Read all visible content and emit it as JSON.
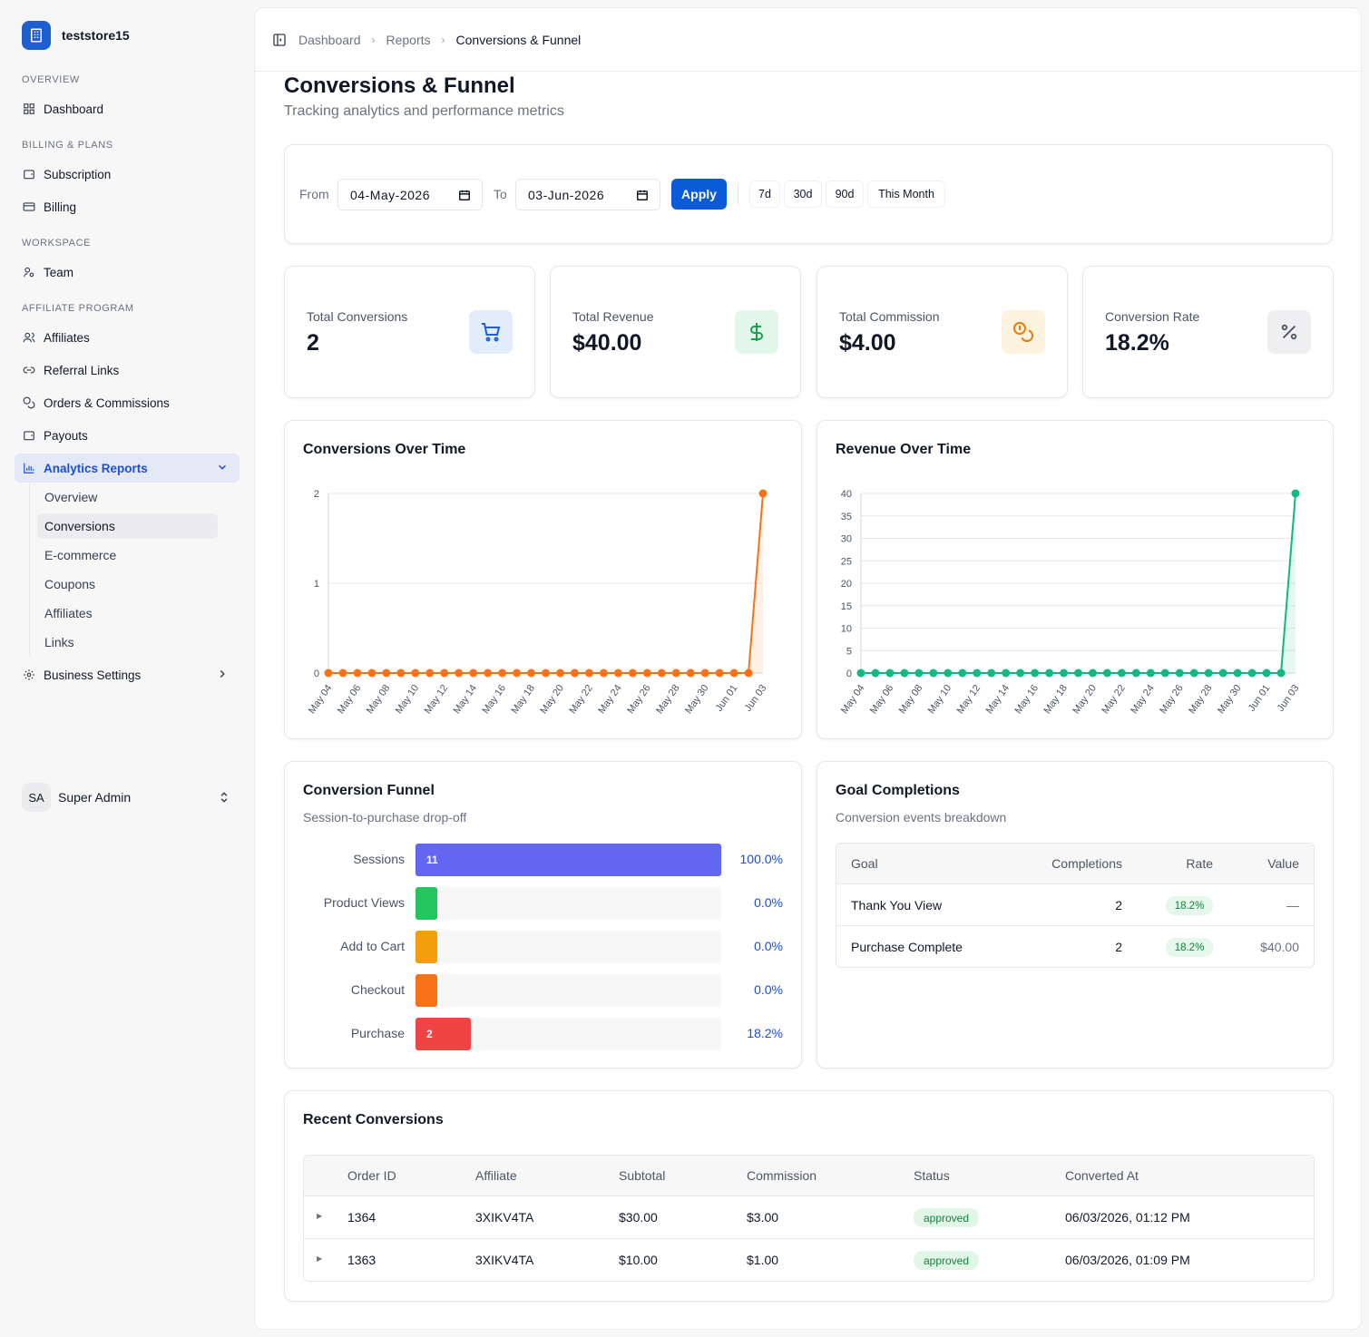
{
  "brand": {
    "name": "teststore15"
  },
  "sidebar": {
    "sections": {
      "overview": "OVERVIEW",
      "billing": "BILLING & PLANS",
      "workspace": "WORKSPACE",
      "affiliate": "AFFILIATE PROGRAM"
    },
    "items": {
      "dashboard": "Dashboard",
      "subscription": "Subscription",
      "billing": "Billing",
      "team": "Team",
      "affiliates": "Affiliates",
      "referral_links": "Referral Links",
      "orders": "Orders & Commissions",
      "payouts": "Payouts",
      "analytics": "Analytics Reports",
      "business_settings": "Business Settings"
    },
    "analytics_sub": [
      "Overview",
      "Conversions",
      "E-commerce",
      "Coupons",
      "Affiliates",
      "Links"
    ],
    "active_sub": "Conversions"
  },
  "user": {
    "initials": "SA",
    "name": "Super Admin"
  },
  "breadcrumb": [
    "Dashboard",
    "Reports",
    "Conversions & Funnel"
  ],
  "page": {
    "title": "Conversions & Funnel",
    "subtitle": "Tracking analytics and performance metrics"
  },
  "filter": {
    "from_label": "From",
    "from_value": "04-May-2026",
    "to_label": "To",
    "to_value": "03-Jun-2026",
    "apply_label": "Apply",
    "presets": [
      "7d",
      "30d",
      "90d",
      "This Month"
    ]
  },
  "stats": [
    {
      "label": "Total Conversions",
      "value": "2",
      "icon": "cart-icon",
      "bg": "#e3ecfb",
      "color": "#1d5fd1"
    },
    {
      "label": "Total Revenue",
      "value": "$40.00",
      "icon": "dollar-icon",
      "bg": "#e3f6ea",
      "color": "#16a34a"
    },
    {
      "label": "Total Commission",
      "value": "$4.00",
      "icon": "coins-icon",
      "bg": "#fdf3df",
      "color": "#ea7c0c"
    },
    {
      "label": "Conversion Rate",
      "value": "18.2%",
      "icon": "percent-icon",
      "bg": "#efeff1",
      "color": "#4b5563"
    }
  ],
  "chart_data": [
    {
      "type": "area",
      "title": "Conversions Over Time",
      "color": "#f97316",
      "x": [
        "May 04",
        "May 05",
        "May 06",
        "May 07",
        "May 08",
        "May 09",
        "May 10",
        "May 11",
        "May 12",
        "May 13",
        "May 14",
        "May 15",
        "May 16",
        "May 17",
        "May 18",
        "May 19",
        "May 20",
        "May 21",
        "May 22",
        "May 23",
        "May 24",
        "May 25",
        "May 26",
        "May 27",
        "May 28",
        "May 29",
        "May 30",
        "May 31",
        "Jun 01",
        "Jun 02",
        "Jun 03"
      ],
      "x_tick_labels": [
        "May 04",
        "May 06",
        "May 08",
        "May 10",
        "May 12",
        "May 14",
        "May 16",
        "May 18",
        "May 20",
        "May 22",
        "May 24",
        "May 26",
        "May 28",
        "May 30",
        "Jun 01",
        "Jun 03"
      ],
      "values": [
        0,
        0,
        0,
        0,
        0,
        0,
        0,
        0,
        0,
        0,
        0,
        0,
        0,
        0,
        0,
        0,
        0,
        0,
        0,
        0,
        0,
        0,
        0,
        0,
        0,
        0,
        0,
        0,
        0,
        0,
        2
      ],
      "y_ticks": [
        0,
        1,
        2
      ],
      "ylim": [
        0,
        2
      ],
      "grid": true
    },
    {
      "type": "area",
      "title": "Revenue Over Time",
      "color": "#10b981",
      "x": [
        "May 04",
        "May 05",
        "May 06",
        "May 07",
        "May 08",
        "May 09",
        "May 10",
        "May 11",
        "May 12",
        "May 13",
        "May 14",
        "May 15",
        "May 16",
        "May 17",
        "May 18",
        "May 19",
        "May 20",
        "May 21",
        "May 22",
        "May 23",
        "May 24",
        "May 25",
        "May 26",
        "May 27",
        "May 28",
        "May 29",
        "May 30",
        "May 31",
        "Jun 01",
        "Jun 02",
        "Jun 03"
      ],
      "x_tick_labels": [
        "May 04",
        "May 06",
        "May 08",
        "May 10",
        "May 12",
        "May 14",
        "May 16",
        "May 18",
        "May 20",
        "May 22",
        "May 24",
        "May 26",
        "May 28",
        "May 30",
        "Jun 01",
        "Jun 03"
      ],
      "values": [
        0,
        0,
        0,
        0,
        0,
        0,
        0,
        0,
        0,
        0,
        0,
        0,
        0,
        0,
        0,
        0,
        0,
        0,
        0,
        0,
        0,
        0,
        0,
        0,
        0,
        0,
        0,
        0,
        0,
        0,
        40
      ],
      "y_ticks": [
        0,
        5,
        10,
        15,
        20,
        25,
        30,
        35,
        40
      ],
      "ylim": [
        0,
        40
      ],
      "grid": true
    }
  ],
  "funnel": {
    "title": "Conversion Funnel",
    "subtitle": "Session-to-purchase drop-off",
    "steps": [
      {
        "label": "Sessions",
        "value": "11",
        "pct": "100.0%",
        "fraction": 1.0,
        "color": "#6366f1"
      },
      {
        "label": "Product Views",
        "value": "",
        "pct": "0.0%",
        "fraction": 0.0,
        "color": "#22c55e"
      },
      {
        "label": "Add to Cart",
        "value": "",
        "pct": "0.0%",
        "fraction": 0.0,
        "color": "#f59e0b"
      },
      {
        "label": "Checkout",
        "value": "",
        "pct": "0.0%",
        "fraction": 0.0,
        "color": "#f97316"
      },
      {
        "label": "Purchase",
        "value": "2",
        "pct": "18.2%",
        "fraction": 0.182,
        "color": "#ef4444"
      }
    ]
  },
  "goals": {
    "title": "Goal Completions",
    "subtitle": "Conversion events breakdown",
    "columns": [
      "Goal",
      "Completions",
      "Rate",
      "Value"
    ],
    "rows": [
      {
        "goal": "Thank You View",
        "completions": "2",
        "rate": "18.2%",
        "value": "—"
      },
      {
        "goal": "Purchase Complete",
        "completions": "2",
        "rate": "18.2%",
        "value": "$40.00"
      }
    ]
  },
  "recent": {
    "title": "Recent Conversions",
    "columns": [
      "Order ID",
      "Affiliate",
      "Subtotal",
      "Commission",
      "Status",
      "Converted At"
    ],
    "rows": [
      {
        "order_id": "1364",
        "affiliate": "3XIKV4TA",
        "subtotal": "$30.00",
        "commission": "$3.00",
        "status": "approved",
        "converted_at": "06/03/2026, 01:12 PM"
      },
      {
        "order_id": "1363",
        "affiliate": "3XIKV4TA",
        "subtotal": "$10.00",
        "commission": "$1.00",
        "status": "approved",
        "converted_at": "06/03/2026, 01:09 PM"
      }
    ]
  }
}
